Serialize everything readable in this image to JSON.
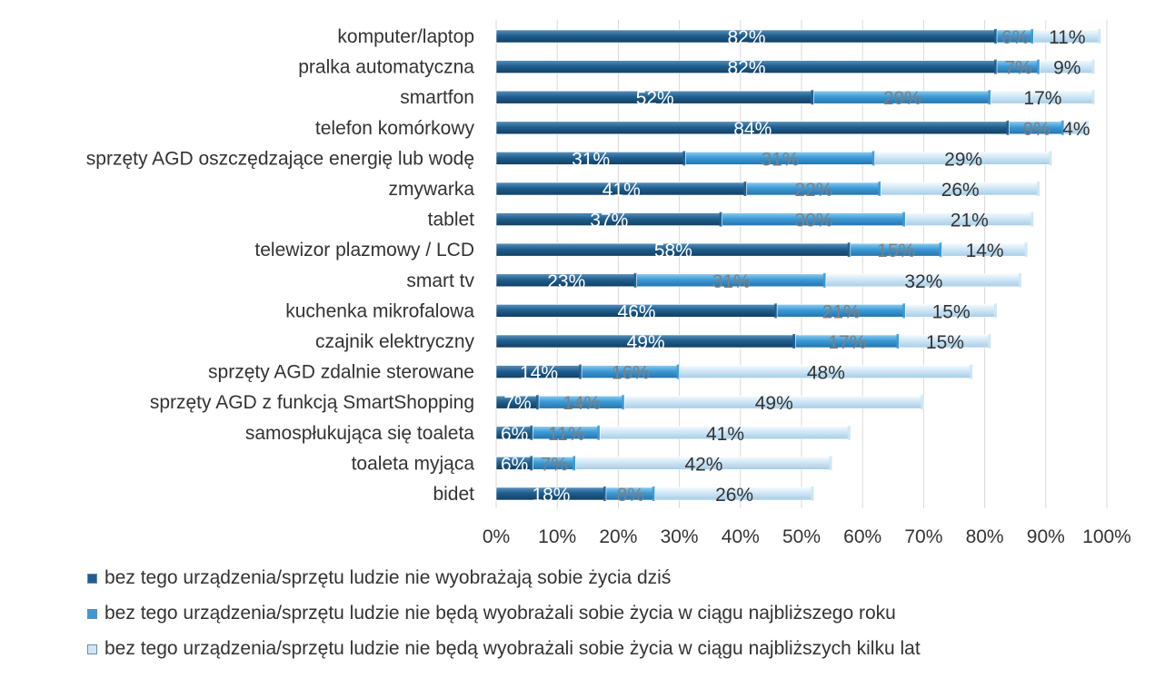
{
  "chart_data": {
    "type": "bar",
    "orientation": "horizontal",
    "stacked": true,
    "categories": [
      "komputer/laptop",
      "pralka automatyczna",
      "smartfon",
      "telefon komórkowy",
      "sprzęty AGD oszczędzające energię lub wodę",
      "zmywarka",
      "tablet",
      "telewizor plazmowy / LCD",
      "smart tv",
      "kuchenka mikrofalowa",
      "czajnik elektryczny",
      "sprzęty AGD zdalnie sterowane",
      "sprzęty AGD z funkcją SmartShopping",
      "samospłukująca się toaleta",
      "toaleta myjąca",
      "bidet"
    ],
    "series": [
      {
        "name": "bez tego urządzenia/sprzętu ludzie nie wyobrażają sobie życia dziś",
        "color": "#1f5f8f",
        "values": [
          82,
          82,
          52,
          84,
          31,
          41,
          37,
          58,
          23,
          46,
          49,
          14,
          7,
          6,
          6,
          18
        ]
      },
      {
        "name": "bez tego urządzenia/sprzętu ludzie nie będą wyobrażali sobie życia w ciągu najbliższego roku",
        "color": "#3d9ad6",
        "values": [
          6,
          7,
          29,
          9,
          31,
          22,
          30,
          15,
          31,
          21,
          17,
          16,
          14,
          11,
          7,
          8
        ]
      },
      {
        "name": "bez tego urządzenia/sprzętu ludzie nie będą wyobrażali sobie życia w ciągu najbliższych kilku lat",
        "color": "#cfe6f6",
        "values": [
          11,
          9,
          17,
          4,
          29,
          26,
          21,
          14,
          32,
          15,
          15,
          48,
          49,
          41,
          42,
          26
        ]
      }
    ],
    "x_ticks": [
      "0%",
      "10%",
      "20%",
      "30%",
      "40%",
      "50%",
      "60%",
      "70%",
      "80%",
      "90%",
      "100%"
    ],
    "xlim": [
      0,
      100
    ],
    "value_suffix": "%",
    "grid": "vertical",
    "legend_position": "bottom"
  }
}
